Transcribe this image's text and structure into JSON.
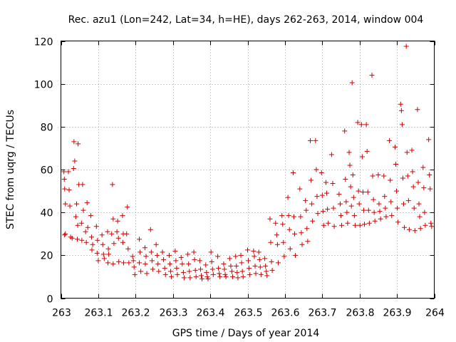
{
  "chart_data": {
    "type": "scatter",
    "title": "Rec. azu1 (Lon=242, Lat=34, h=HE), days 262-263, 2014, window 004",
    "xlabel": "GPS time / Days of year 2014",
    "ylabel": "STEC from uqrg / TECUs",
    "xlim": [
      263,
      264
    ],
    "ylim": [
      0,
      120
    ],
    "x_ticks": [
      "263",
      "263.1",
      "263.2",
      "263.3",
      "263.4",
      "263.5",
      "263.6",
      "263.7",
      "263.8",
      "263.9",
      "264"
    ],
    "y_ticks": [
      "0",
      "20",
      "40",
      "60",
      "80",
      "100",
      "120"
    ],
    "grid": true,
    "marker": "plus",
    "color": "#d00000",
    "series": [
      {
        "name": "STEC",
        "points": [
          [
            263.008,
            59.0
          ],
          [
            263.009,
            55.5
          ],
          [
            263.01,
            51.0
          ],
          [
            263.012,
            44.0
          ],
          [
            263.012,
            30.0
          ],
          [
            263.01,
            29.5
          ],
          [
            263.02,
            59.0
          ],
          [
            263.022,
            50.5
          ],
          [
            263.024,
            43.0
          ],
          [
            263.026,
            28.5
          ],
          [
            263.035,
            73.0
          ],
          [
            263.037,
            64.0
          ],
          [
            263.034,
            60.5
          ],
          [
            263.03,
            28.0
          ],
          [
            263.046,
            72.0
          ],
          [
            263.048,
            53.0
          ],
          [
            263.042,
            44.0
          ],
          [
            263.04,
            38.0
          ],
          [
            263.045,
            34.0
          ],
          [
            263.044,
            27.5
          ],
          [
            263.058,
            53.0
          ],
          [
            263.06,
            41.0
          ],
          [
            263.055,
            35.0
          ],
          [
            263.056,
            27.0
          ],
          [
            263.07,
            44.5
          ],
          [
            263.072,
            33.0
          ],
          [
            263.066,
            31.0
          ],
          [
            263.068,
            26.0
          ],
          [
            263.08,
            38.5
          ],
          [
            263.082,
            28.5
          ],
          [
            263.085,
            25.0
          ],
          [
            263.083,
            22.5
          ],
          [
            263.095,
            33.5
          ],
          [
            263.098,
            27.0
          ],
          [
            263.097,
            21.0
          ],
          [
            263.1,
            17.5
          ],
          [
            263.11,
            29.5
          ],
          [
            263.112,
            25.0
          ],
          [
            263.114,
            20.5
          ],
          [
            263.116,
            18.5
          ],
          [
            263.125,
            31.0
          ],
          [
            263.127,
            23.0
          ],
          [
            263.128,
            20.5
          ],
          [
            263.126,
            16.5
          ],
          [
            263.138,
            53.0
          ],
          [
            263.14,
            37.0
          ],
          [
            263.136,
            30.0
          ],
          [
            263.142,
            25.5
          ],
          [
            263.14,
            16.0
          ],
          [
            263.152,
            36.0
          ],
          [
            263.15,
            31.0
          ],
          [
            263.154,
            28.0
          ],
          [
            263.155,
            17.0
          ],
          [
            263.165,
            38.5
          ],
          [
            263.167,
            30.0
          ],
          [
            263.166,
            26.0
          ],
          [
            263.168,
            16.5
          ],
          [
            263.178,
            42.5
          ],
          [
            263.176,
            30.0
          ],
          [
            263.18,
            23.0
          ],
          [
            263.182,
            16.5
          ],
          [
            263.192,
            19.5
          ],
          [
            263.194,
            17.5
          ],
          [
            263.196,
            14.5
          ],
          [
            263.198,
            11.0
          ],
          [
            263.21,
            27.5
          ],
          [
            263.212,
            21.5
          ],
          [
            263.21,
            16.5
          ],
          [
            263.214,
            12.5
          ],
          [
            263.225,
            23.5
          ],
          [
            263.228,
            19.5
          ],
          [
            263.226,
            16.0
          ],
          [
            263.23,
            11.5
          ],
          [
            263.24,
            32.0
          ],
          [
            263.242,
            21.5
          ],
          [
            263.244,
            17.5
          ],
          [
            263.246,
            13.5
          ],
          [
            263.255,
            25.0
          ],
          [
            263.258,
            20.0
          ],
          [
            263.26,
            16.0
          ],
          [
            263.262,
            12.5
          ],
          [
            263.272,
            21.5
          ],
          [
            263.275,
            18.0
          ],
          [
            263.278,
            14.0
          ],
          [
            263.28,
            11.0
          ],
          [
            263.29,
            20.0
          ],
          [
            263.292,
            16.0
          ],
          [
            263.294,
            12.5
          ],
          [
            263.296,
            10.0
          ],
          [
            263.306,
            22.0
          ],
          [
            263.308,
            17.5
          ],
          [
            263.31,
            14.0
          ],
          [
            263.312,
            11.0
          ],
          [
            263.322,
            19.0
          ],
          [
            263.325,
            16.0
          ],
          [
            263.328,
            12.0
          ],
          [
            263.33,
            9.5
          ],
          [
            263.34,
            20.5
          ],
          [
            263.342,
            16.0
          ],
          [
            263.344,
            12.5
          ],
          [
            263.346,
            9.5
          ],
          [
            263.356,
            21.5
          ],
          [
            263.358,
            18.0
          ],
          [
            263.36,
            13.0
          ],
          [
            263.362,
            10.0
          ],
          [
            263.372,
            17.5
          ],
          [
            263.374,
            13.5
          ],
          [
            263.376,
            10.5
          ],
          [
            263.378,
            9.0
          ],
          [
            263.388,
            15.5
          ],
          [
            263.39,
            12.0
          ],
          [
            263.392,
            10.0
          ],
          [
            263.394,
            9.0
          ],
          [
            263.402,
            21.5
          ],
          [
            263.404,
            17.0
          ],
          [
            263.406,
            13.5
          ],
          [
            263.408,
            11.0
          ],
          [
            263.42,
            19.5
          ],
          [
            263.422,
            14.0
          ],
          [
            263.424,
            11.5
          ],
          [
            263.426,
            10.0
          ],
          [
            263.436,
            16.0
          ],
          [
            263.438,
            13.5
          ],
          [
            263.44,
            11.0
          ],
          [
            263.442,
            10.0
          ],
          [
            263.452,
            18.5
          ],
          [
            263.455,
            15.0
          ],
          [
            263.458,
            12.5
          ],
          [
            263.46,
            10.0
          ],
          [
            263.468,
            19.5
          ],
          [
            263.47,
            15.0
          ],
          [
            263.472,
            12.0
          ],
          [
            263.474,
            9.5
          ],
          [
            263.482,
            20.0
          ],
          [
            263.484,
            16.5
          ],
          [
            263.486,
            12.5
          ],
          [
            263.488,
            10.0
          ],
          [
            263.5,
            22.5
          ],
          [
            263.502,
            17.5
          ],
          [
            263.504,
            14.0
          ],
          [
            263.506,
            11.0
          ],
          [
            263.516,
            22.0
          ],
          [
            263.518,
            19.5
          ],
          [
            263.52,
            15.0
          ],
          [
            263.522,
            11.5
          ],
          [
            263.53,
            21.5
          ],
          [
            263.532,
            18.0
          ],
          [
            263.534,
            14.5
          ],
          [
            263.536,
            11.0
          ],
          [
            263.546,
            18.5
          ],
          [
            263.548,
            15.0
          ],
          [
            263.55,
            12.5
          ],
          [
            263.552,
            10.5
          ],
          [
            263.56,
            37.0
          ],
          [
            263.562,
            26.0
          ],
          [
            263.564,
            17.0
          ],
          [
            263.566,
            13.0
          ],
          [
            263.575,
            35.0
          ],
          [
            263.578,
            29.5
          ],
          [
            263.58,
            25.0
          ],
          [
            263.582,
            16.5
          ],
          [
            263.592,
            38.5
          ],
          [
            263.594,
            34.5
          ],
          [
            263.596,
            26.0
          ],
          [
            263.598,
            19.5
          ],
          [
            263.608,
            47.0
          ],
          [
            263.61,
            38.5
          ],
          [
            263.612,
            32.0
          ],
          [
            263.614,
            23.0
          ],
          [
            263.622,
            58.5
          ],
          [
            263.624,
            38.0
          ],
          [
            263.626,
            30.0
          ],
          [
            263.628,
            20.0
          ],
          [
            263.64,
            51.0
          ],
          [
            263.642,
            38.0
          ],
          [
            263.644,
            30.5
          ],
          [
            263.646,
            25.0
          ],
          [
            263.655,
            45.5
          ],
          [
            263.657,
            41.0
          ],
          [
            263.659,
            32.5
          ],
          [
            263.661,
            26.5
          ],
          [
            263.668,
            73.5
          ],
          [
            263.67,
            55.0
          ],
          [
            263.672,
            44.0
          ],
          [
            263.674,
            36.0
          ],
          [
            263.682,
            73.5
          ],
          [
            263.684,
            60.0
          ],
          [
            263.686,
            47.5
          ],
          [
            263.688,
            39.5
          ],
          [
            263.698,
            58.5
          ],
          [
            263.7,
            48.0
          ],
          [
            263.702,
            40.5
          ],
          [
            263.704,
            34.0
          ],
          [
            263.71,
            54.0
          ],
          [
            263.712,
            49.0
          ],
          [
            263.714,
            41.5
          ],
          [
            263.716,
            35.0
          ],
          [
            263.725,
            67.0
          ],
          [
            263.728,
            53.5
          ],
          [
            263.73,
            42.0
          ],
          [
            263.732,
            33.5
          ],
          [
            263.745,
            48.5
          ],
          [
            263.748,
            44.0
          ],
          [
            263.75,
            38.5
          ],
          [
            263.752,
            34.0
          ],
          [
            263.76,
            78.0
          ],
          [
            263.762,
            55.5
          ],
          [
            263.764,
            45.0
          ],
          [
            263.766,
            40.0
          ],
          [
            263.768,
            35.0
          ],
          [
            263.772,
            68.0
          ],
          [
            263.774,
            62.0
          ],
          [
            263.776,
            52.0
          ],
          [
            263.778,
            43.0
          ],
          [
            263.78,
            100.5
          ],
          [
            263.782,
            57.5
          ],
          [
            263.784,
            47.0
          ],
          [
            263.786,
            38.5
          ],
          [
            263.788,
            34.0
          ],
          [
            263.795,
            82.0
          ],
          [
            263.797,
            50.0
          ],
          [
            263.799,
            44.0
          ],
          [
            263.801,
            34.0
          ],
          [
            263.805,
            81.0
          ],
          [
            263.807,
            66.0
          ],
          [
            263.809,
            49.5
          ],
          [
            263.811,
            41.0
          ],
          [
            263.813,
            34.5
          ],
          [
            263.818,
            81.0
          ],
          [
            263.82,
            68.5
          ],
          [
            263.822,
            49.5
          ],
          [
            263.824,
            41.0
          ],
          [
            263.826,
            35.0
          ],
          [
            263.833,
            104.0
          ],
          [
            263.835,
            57.0
          ],
          [
            263.837,
            46.0
          ],
          [
            263.839,
            40.0
          ],
          [
            263.841,
            36.0
          ],
          [
            263.85,
            57.5
          ],
          [
            263.852,
            44.0
          ],
          [
            263.854,
            40.5
          ],
          [
            263.856,
            37.0
          ],
          [
            263.865,
            57.0
          ],
          [
            263.867,
            47.5
          ],
          [
            263.869,
            42.0
          ],
          [
            263.871,
            38.0
          ],
          [
            263.88,
            73.5
          ],
          [
            263.882,
            55.0
          ],
          [
            263.884,
            45.0
          ],
          [
            263.886,
            38.5
          ],
          [
            263.895,
            70.5
          ],
          [
            263.897,
            62.5
          ],
          [
            263.899,
            50.0
          ],
          [
            263.901,
            42.0
          ],
          [
            263.903,
            35.5
          ],
          [
            263.91,
            90.5
          ],
          [
            263.912,
            87.5
          ],
          [
            263.914,
            81.0
          ],
          [
            263.916,
            56.0
          ],
          [
            263.918,
            44.0
          ],
          [
            263.92,
            33.0
          ],
          [
            263.925,
            117.5
          ],
          [
            263.927,
            68.0
          ],
          [
            263.929,
            57.0
          ],
          [
            263.931,
            45.5
          ],
          [
            263.933,
            32.0
          ],
          [
            263.94,
            69.0
          ],
          [
            263.942,
            59.0
          ],
          [
            263.944,
            52.0
          ],
          [
            263.946,
            42.0
          ],
          [
            263.948,
            31.5
          ],
          [
            263.955,
            88.0
          ],
          [
            263.957,
            54.0
          ],
          [
            263.959,
            44.0
          ],
          [
            263.961,
            38.0
          ],
          [
            263.963,
            32.5
          ],
          [
            263.97,
            61.0
          ],
          [
            263.972,
            51.5
          ],
          [
            263.974,
            40.0
          ],
          [
            263.976,
            34.0
          ],
          [
            263.985,
            74.0
          ],
          [
            263.987,
            57.5
          ],
          [
            263.989,
            51.0
          ],
          [
            263.991,
            35.0
          ],
          [
            263.993,
            33.5
          ]
        ]
      }
    ]
  }
}
